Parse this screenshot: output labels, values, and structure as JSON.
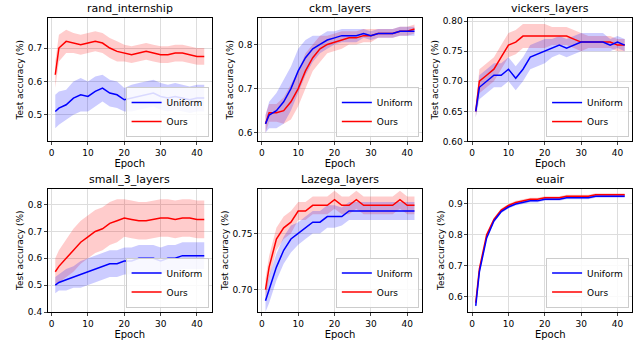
{
  "chart_data": [
    {
      "type": "line",
      "title": "rand_internship",
      "x_label": "Epoch",
      "y_label": "Test accuracy (%)",
      "x": [
        1,
        2,
        4,
        6,
        8,
        10,
        12,
        14,
        16,
        18,
        20,
        22,
        24,
        26,
        28,
        30,
        32,
        34,
        36,
        38,
        40,
        42
      ],
      "xlim": [
        -1,
        44
      ],
      "xticks": [
        0,
        10,
        20,
        30,
        40
      ],
      "ylim": [
        0.42,
        0.79
      ],
      "yticks": [
        0.5,
        0.6,
        0.7
      ],
      "grid": true,
      "legend": "lower right",
      "series": [
        {
          "name": "Ours",
          "color": "#ff0000",
          "values": [
            0.62,
            0.7,
            0.72,
            0.715,
            0.71,
            0.715,
            0.72,
            0.715,
            0.7,
            0.69,
            0.685,
            0.68,
            0.685,
            0.69,
            0.685,
            0.68,
            0.68,
            0.685,
            0.685,
            0.68,
            0.675,
            0.675
          ],
          "error": [
            0.04,
            0.04,
            0.035,
            0.03,
            0.03,
            0.03,
            0.03,
            0.03,
            0.03,
            0.03,
            0.025,
            0.025,
            0.025,
            0.025,
            0.025,
            0.025,
            0.025,
            0.025,
            0.025,
            0.025,
            0.025,
            0.025
          ]
        },
        {
          "name": "Uniform",
          "color": "#0000ff",
          "values": [
            0.51,
            0.52,
            0.53,
            0.55,
            0.56,
            0.555,
            0.57,
            0.58,
            0.565,
            0.56,
            0.545,
            0.55,
            0.555,
            0.56,
            0.565,
            0.555,
            0.55,
            0.555,
            0.55,
            0.545,
            0.55,
            0.55
          ],
          "error": [
            0.05,
            0.05,
            0.045,
            0.05,
            0.05,
            0.045,
            0.045,
            0.04,
            0.04,
            0.04,
            0.035,
            0.04,
            0.04,
            0.04,
            0.04,
            0.04,
            0.04,
            0.04,
            0.04,
            0.04,
            0.04,
            0.04
          ]
        }
      ]
    },
    {
      "type": "line",
      "title": "ckm_layers",
      "x_label": "Epoch",
      "y_label": "Test accuracy (%)",
      "x": [
        1,
        2,
        4,
        6,
        8,
        10,
        12,
        14,
        16,
        18,
        20,
        22,
        24,
        26,
        28,
        30,
        32,
        34,
        36,
        38,
        40,
        42
      ],
      "xlim": [
        -1,
        44
      ],
      "xticks": [
        0,
        10,
        20,
        30,
        40
      ],
      "ylim": [
        0.58,
        0.86
      ],
      "yticks": [
        0.6,
        0.7,
        0.8
      ],
      "grid": true,
      "legend": "lower right",
      "series": [
        {
          "name": "Ours",
          "color": "#ff0000",
          "values": [
            0.62,
            0.645,
            0.645,
            0.65,
            0.67,
            0.7,
            0.74,
            0.77,
            0.79,
            0.8,
            0.805,
            0.81,
            0.815,
            0.815,
            0.82,
            0.82,
            0.825,
            0.825,
            0.825,
            0.83,
            0.83,
            0.835
          ],
          "error": [
            0.02,
            0.02,
            0.02,
            0.03,
            0.04,
            0.04,
            0.04,
            0.03,
            0.03,
            0.02,
            0.02,
            0.02,
            0.015,
            0.015,
            0.015,
            0.015,
            0.01,
            0.01,
            0.01,
            0.01,
            0.01,
            0.01
          ]
        },
        {
          "name": "Uniform",
          "color": "#0000ff",
          "values": [
            0.62,
            0.64,
            0.65,
            0.67,
            0.7,
            0.74,
            0.77,
            0.79,
            0.8,
            0.81,
            0.815,
            0.82,
            0.82,
            0.82,
            0.825,
            0.82,
            0.825,
            0.825,
            0.825,
            0.83,
            0.83,
            0.83
          ],
          "error": [
            0.02,
            0.03,
            0.04,
            0.05,
            0.05,
            0.05,
            0.04,
            0.03,
            0.02,
            0.02,
            0.015,
            0.015,
            0.015,
            0.015,
            0.01,
            0.01,
            0.01,
            0.01,
            0.01,
            0.01,
            0.01,
            0.01
          ]
        }
      ]
    },
    {
      "type": "line",
      "title": "vickers_layers",
      "x_label": "Epoch",
      "y_label": "Test accuracy (%)",
      "x": [
        1,
        2,
        4,
        6,
        8,
        10,
        12,
        14,
        16,
        18,
        20,
        22,
        24,
        26,
        28,
        30,
        32,
        34,
        36,
        38,
        40,
        42
      ],
      "xlim": [
        -1,
        44
      ],
      "xticks": [
        0,
        10,
        20,
        30,
        40
      ],
      "ylim": [
        0.6,
        0.805
      ],
      "yticks": [
        {
          "value": 0.6,
          "label": "0.60"
        },
        {
          "value": 0.65,
          "label": "0.65"
        },
        {
          "value": 0.7,
          "label": "0.70"
        },
        {
          "value": 0.75,
          "label": "0.75"
        },
        {
          "value": 0.8,
          "label": "0.80"
        }
      ],
      "grid": true,
      "legend": "lower right",
      "series": [
        {
          "name": "Ours",
          "color": "#ff0000",
          "values": [
            0.65,
            0.7,
            0.71,
            0.72,
            0.74,
            0.76,
            0.765,
            0.775,
            0.775,
            0.775,
            0.775,
            0.775,
            0.775,
            0.775,
            0.77,
            0.765,
            0.765,
            0.765,
            0.765,
            0.765,
            0.76,
            0.76
          ],
          "error": [
            0.01,
            0.02,
            0.02,
            0.02,
            0.02,
            0.02,
            0.02,
            0.02,
            0.02,
            0.02,
            0.02,
            0.015,
            0.015,
            0.015,
            0.015,
            0.015,
            0.01,
            0.01,
            0.01,
            0.01,
            0.01,
            0.01
          ]
        },
        {
          "name": "Uniform",
          "color": "#0000ff",
          "values": [
            0.65,
            0.69,
            0.7,
            0.71,
            0.71,
            0.72,
            0.705,
            0.72,
            0.74,
            0.745,
            0.75,
            0.755,
            0.76,
            0.755,
            0.76,
            0.765,
            0.765,
            0.765,
            0.765,
            0.76,
            0.765,
            0.76
          ],
          "error": [
            0.01,
            0.02,
            0.02,
            0.02,
            0.02,
            0.02,
            0.02,
            0.02,
            0.02,
            0.02,
            0.02,
            0.015,
            0.015,
            0.015,
            0.015,
            0.015,
            0.015,
            0.015,
            0.015,
            0.01,
            0.01,
            0.01
          ]
        }
      ]
    },
    {
      "type": "line",
      "title": "small_3_layers",
      "x_label": "Epoch",
      "y_label": "Test accuracy (%)",
      "x": [
        1,
        2,
        4,
        6,
        8,
        10,
        12,
        14,
        16,
        18,
        20,
        22,
        24,
        26,
        28,
        30,
        32,
        34,
        36,
        38,
        40,
        42
      ],
      "xlim": [
        -1,
        44
      ],
      "xticks": [
        0,
        10,
        20,
        30,
        40
      ],
      "ylim": [
        0.4,
        0.86
      ],
      "yticks": [
        0.4,
        0.5,
        0.6,
        0.7,
        0.8
      ],
      "grid": true,
      "legend": "lower right",
      "series": [
        {
          "name": "Ours",
          "color": "#ff0000",
          "values": [
            0.55,
            0.57,
            0.6,
            0.63,
            0.66,
            0.68,
            0.7,
            0.71,
            0.73,
            0.74,
            0.75,
            0.745,
            0.74,
            0.74,
            0.745,
            0.75,
            0.75,
            0.745,
            0.75,
            0.75,
            0.745,
            0.745
          ],
          "error": [
            0.05,
            0.06,
            0.07,
            0.08,
            0.08,
            0.08,
            0.08,
            0.08,
            0.08,
            0.08,
            0.07,
            0.07,
            0.07,
            0.07,
            0.07,
            0.07,
            0.07,
            0.07,
            0.07,
            0.07,
            0.07,
            0.07
          ]
        },
        {
          "name": "Uniform",
          "color": "#0000ff",
          "values": [
            0.5,
            0.51,
            0.52,
            0.53,
            0.54,
            0.55,
            0.56,
            0.57,
            0.58,
            0.58,
            0.59,
            0.59,
            0.6,
            0.6,
            0.6,
            0.59,
            0.6,
            0.6,
            0.61,
            0.61,
            0.61,
            0.61
          ],
          "error": [
            0.03,
            0.03,
            0.04,
            0.04,
            0.05,
            0.05,
            0.05,
            0.05,
            0.05,
            0.05,
            0.05,
            0.05,
            0.05,
            0.05,
            0.05,
            0.05,
            0.05,
            0.05,
            0.05,
            0.05,
            0.05,
            0.05
          ]
        }
      ]
    },
    {
      "type": "line",
      "title": "Lazega_layers",
      "x_label": "Epoch",
      "y_label": "Test accuracy (%)",
      "x": [
        1,
        2,
        4,
        6,
        8,
        10,
        12,
        14,
        16,
        18,
        20,
        22,
        24,
        26,
        28,
        30,
        32,
        34,
        36,
        38,
        40,
        42
      ],
      "xlim": [
        -1,
        44
      ],
      "xticks": [
        0,
        10,
        20,
        30,
        40
      ],
      "ylim": [
        0.68,
        0.79
      ],
      "yticks": [
        {
          "value": 0.7,
          "label": "0.70"
        },
        {
          "value": 0.75,
          "label": "0.75"
        }
      ],
      "grid": true,
      "legend": "lower right",
      "series": [
        {
          "name": "Ours",
          "color": "#ff0000",
          "values": [
            0.7,
            0.72,
            0.745,
            0.755,
            0.76,
            0.77,
            0.77,
            0.775,
            0.775,
            0.775,
            0.78,
            0.775,
            0.775,
            0.78,
            0.775,
            0.775,
            0.775,
            0.775,
            0.775,
            0.78,
            0.775,
            0.775
          ],
          "error": [
            0.01,
            0.01,
            0.01,
            0.01,
            0.01,
            0.008,
            0.008,
            0.008,
            0.008,
            0.008,
            0.008,
            0.008,
            0.008,
            0.008,
            0.008,
            0.008,
            0.008,
            0.008,
            0.008,
            0.008,
            0.008,
            0.008
          ]
        },
        {
          "name": "Uniform",
          "color": "#0000ff",
          "values": [
            0.69,
            0.7,
            0.72,
            0.735,
            0.745,
            0.75,
            0.755,
            0.76,
            0.76,
            0.765,
            0.765,
            0.765,
            0.77,
            0.77,
            0.77,
            0.77,
            0.77,
            0.77,
            0.77,
            0.77,
            0.77,
            0.77
          ],
          "error": [
            0.01,
            0.012,
            0.012,
            0.012,
            0.012,
            0.01,
            0.01,
            0.01,
            0.01,
            0.01,
            0.01,
            0.008,
            0.008,
            0.008,
            0.008,
            0.008,
            0.008,
            0.008,
            0.008,
            0.008,
            0.008,
            0.008
          ]
        }
      ]
    },
    {
      "type": "line",
      "title": "euair",
      "x_label": "Epoch",
      "y_label": "Test accuracy (%)",
      "x": [
        1,
        2,
        4,
        6,
        8,
        10,
        12,
        14,
        16,
        18,
        20,
        22,
        24,
        26,
        28,
        30,
        32,
        34,
        36,
        38,
        40,
        42
      ],
      "xlim": [
        -1,
        44
      ],
      "xticks": [
        0,
        10,
        20,
        30,
        40
      ],
      "ylim": [
        0.55,
        0.95
      ],
      "yticks": [
        0.6,
        0.7,
        0.8,
        0.9
      ],
      "grid": true,
      "legend": "lower right",
      "series": [
        {
          "name": "Ours",
          "color": "#ff0000",
          "values": [
            0.58,
            0.69,
            0.8,
            0.85,
            0.88,
            0.895,
            0.905,
            0.91,
            0.915,
            0.915,
            0.92,
            0.92,
            0.92,
            0.925,
            0.925,
            0.925,
            0.925,
            0.93,
            0.93,
            0.93,
            0.93,
            0.93
          ],
          "error": [
            0.01,
            0.01,
            0.005,
            0.005,
            0.005,
            0.005,
            0.005,
            0.005,
            0.005,
            0.005,
            0.005,
            0.005,
            0.005,
            0.005,
            0.005,
            0.005,
            0.005,
            0.005,
            0.005,
            0.005,
            0.005,
            0.005
          ]
        },
        {
          "name": "Uniform",
          "color": "#0000ff",
          "values": [
            0.57,
            0.68,
            0.79,
            0.845,
            0.875,
            0.89,
            0.9,
            0.905,
            0.91,
            0.91,
            0.915,
            0.915,
            0.915,
            0.92,
            0.92,
            0.92,
            0.92,
            0.925,
            0.925,
            0.925,
            0.925,
            0.925
          ],
          "error": [
            0.01,
            0.01,
            0.005,
            0.005,
            0.005,
            0.005,
            0.005,
            0.005,
            0.005,
            0.005,
            0.005,
            0.005,
            0.005,
            0.005,
            0.005,
            0.005,
            0.005,
            0.005,
            0.005,
            0.005,
            0.005,
            0.005
          ]
        }
      ]
    }
  ]
}
